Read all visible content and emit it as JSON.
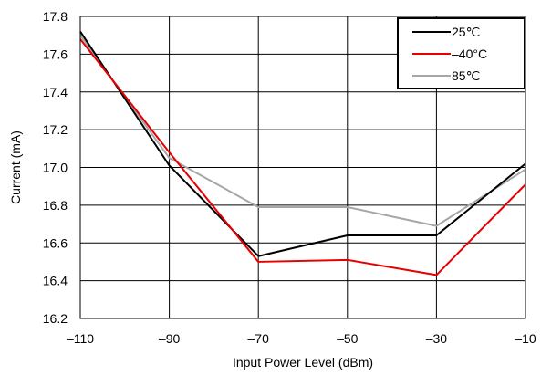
{
  "chart_data": {
    "type": "line",
    "xlabel": "Input Power Level (dBm)",
    "ylabel": "Current (mA)",
    "x": [
      -110,
      -90,
      -70,
      -50,
      -30,
      -10
    ],
    "xticks": [
      "–110",
      "–90",
      "–70",
      "–50",
      "–30",
      "–10"
    ],
    "yticks": [
      "16.2",
      "16.4",
      "16.6",
      "16.8",
      "17.0",
      "17.2",
      "17.4",
      "17.6",
      "17.8"
    ],
    "xlim": [
      -110,
      -10
    ],
    "ylim": [
      16.2,
      17.8
    ],
    "grid": true,
    "legend_position": "top-right",
    "series": [
      {
        "name": "25℃",
        "color": "#000000",
        "values": [
          17.72,
          17.01,
          16.53,
          16.64,
          16.64,
          17.02
        ]
      },
      {
        "name": "–40°C",
        "color": "#e60000",
        "values": [
          17.68,
          17.08,
          16.5,
          16.51,
          16.43,
          16.91
        ]
      },
      {
        "name": "85℃",
        "color": "#a6a6a6",
        "values": [
          17.7,
          17.05,
          16.79,
          16.79,
          16.69,
          16.99
        ]
      }
    ]
  }
}
